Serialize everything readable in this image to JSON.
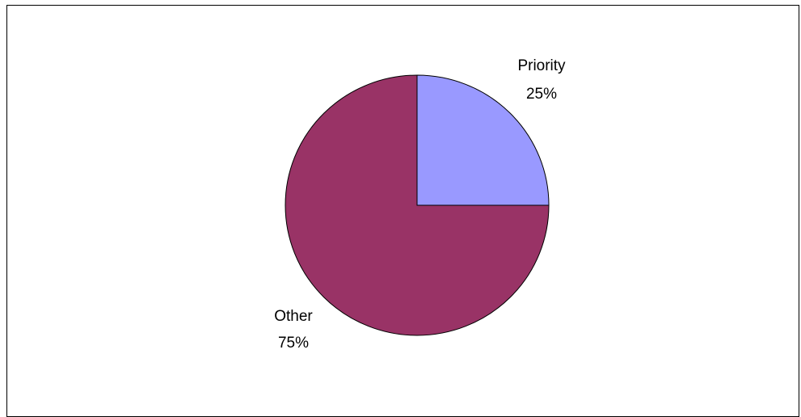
{
  "chart_data": {
    "type": "pie",
    "title": "",
    "start_angle_deg": 0,
    "direction": "clockwise",
    "slices": [
      {
        "label": "Priority",
        "value": 25,
        "percent_label": "25%",
        "color": "#9999ff"
      },
      {
        "label": "Other",
        "value": 75,
        "percent_label": "75%",
        "color": "#993366"
      }
    ],
    "outline_color": "#000000",
    "legend": "none"
  }
}
